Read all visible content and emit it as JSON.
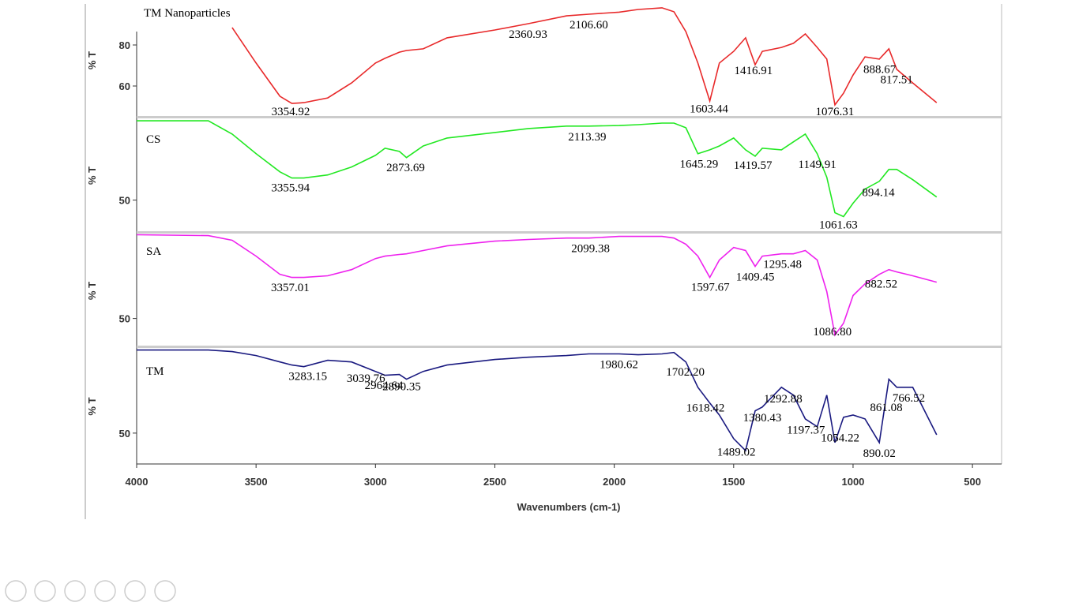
{
  "chart_data": {
    "type": "line",
    "xlabel": "Wavenumbers (cm-1)",
    "x": [
      4000,
      3700,
      3600,
      3500,
      3400,
      3350,
      3300,
      3200,
      3100,
      3000,
      2960,
      2900,
      2870,
      2800,
      2700,
      2500,
      2360,
      2200,
      2106,
      1980,
      1900,
      1800,
      1750,
      1700,
      1650,
      1600,
      1560,
      1500,
      1450,
      1410,
      1380,
      1300,
      1250,
      1200,
      1150,
      1110,
      1076,
      1040,
      1000,
      950,
      890,
      850,
      817,
      750,
      650
    ],
    "xlim": [
      4000,
      378
    ],
    "xticks": [
      4000,
      3500,
      3000,
      2500,
      2000,
      1500,
      1000,
      500
    ],
    "series": [
      {
        "name": "TM Nanoparticles",
        "color": "#e8292a",
        "ylabel": "% T",
        "ylim": [
          45,
          100
        ],
        "yticks": [
          60,
          80
        ],
        "values": [
          null,
          null,
          88.5,
          71.2,
          55,
          51.5,
          51.9,
          54.2,
          61.5,
          71.2,
          73.5,
          76.5,
          77.3,
          78.1,
          83.5,
          87.3,
          90.4,
          94.2,
          95,
          96,
          97.3,
          98.1,
          96.2,
          86.5,
          71.2,
          52.7,
          71.2,
          76.9,
          83.5,
          70.4,
          76.9,
          78.8,
          80.8,
          85.4,
          78.8,
          73.1,
          50.8,
          56.5,
          65.4,
          74.2,
          73.1,
          78.1,
          68.1,
          61.5,
          51.9
        ],
        "annotations": [
          {
            "value": 3354.92,
            "label": "3354.92"
          },
          {
            "value": 2360.93,
            "label": "2360.93"
          },
          {
            "value": 2106.6,
            "label": "2106.60"
          },
          {
            "value": 1603.44,
            "label": "1603.44"
          },
          {
            "value": 1416.91,
            "label": "1416.91"
          },
          {
            "value": 1076.31,
            "label": "1076.31"
          },
          {
            "value": 888.67,
            "label": "888.67"
          },
          {
            "value": 817.51,
            "label": "817.51"
          }
        ]
      },
      {
        "name": "CS",
        "color": "#22e822",
        "ylabel": "% T",
        "ylim": [
          34,
          90
        ],
        "yticks": [
          50
        ],
        "values": [
          88.8,
          88.8,
          82.3,
          72.7,
          63.8,
          60.8,
          60.8,
          62.3,
          66.2,
          71.9,
          75.4,
          73.8,
          70.8,
          76.5,
          80.4,
          83.1,
          85,
          86.2,
          86.2,
          86.5,
          86.9,
          87.7,
          87.7,
          85.4,
          72.7,
          74.6,
          76.5,
          80.4,
          74.6,
          71.5,
          75.4,
          74.6,
          78.5,
          82.3,
          72.7,
          61.2,
          43.8,
          41.9,
          48.5,
          55.4,
          59.2,
          65,
          65,
          60,
          51.5
        ],
        "annotations": [
          {
            "value": 3355.94,
            "label": "3355.94"
          },
          {
            "value": 2873.69,
            "label": "2873.69"
          },
          {
            "value": 2113.39,
            "label": "2113.39"
          },
          {
            "value": 1645.29,
            "label": "1645.29"
          },
          {
            "value": 1419.57,
            "label": "1419.57"
          },
          {
            "value": 1149.91,
            "label": "1149.91"
          },
          {
            "value": 1061.63,
            "label": "1061.63"
          },
          {
            "value": 894.14,
            "label": "894.14"
          }
        ]
      },
      {
        "name": "SA",
        "color": "#ee22ee",
        "ylabel": "% T",
        "ylim": [
          36,
          91
        ],
        "yticks": [
          50
        ],
        "values": [
          90.8,
          90.4,
          88.1,
          80.4,
          71.5,
          70,
          70,
          70.8,
          73.8,
          79.2,
          80.4,
          81.2,
          81.5,
          83.1,
          85.4,
          87.7,
          88.5,
          89.2,
          89.2,
          90,
          90,
          90,
          89.2,
          86.2,
          80.4,
          70,
          78.5,
          84.6,
          83.1,
          75.4,
          80.4,
          81.5,
          81.5,
          83.1,
          78.5,
          63.1,
          41.9,
          47.7,
          61.2,
          66.9,
          71.5,
          73.8,
          72.7,
          70.8,
          67.7
        ],
        "annotations": [
          {
            "value": 3357.01,
            "label": "3357.01"
          },
          {
            "value": 2099.38,
            "label": "2099.38"
          },
          {
            "value": 1597.67,
            "label": "1597.67"
          },
          {
            "value": 1409.45,
            "label": "1409.45"
          },
          {
            "value": 1295.48,
            "label": "1295.48"
          },
          {
            "value": 1086.8,
            "label": "1086.80"
          },
          {
            "value": 882.52,
            "label": "882.52"
          }
        ]
      },
      {
        "name": "TM",
        "color": "#1a1a80",
        "ylabel": "% T",
        "ylim": [
          35,
          91
        ],
        "yticks": [
          50
        ],
        "values": [
          90.4,
          90.4,
          89.6,
          87.7,
          84.6,
          83.1,
          82.3,
          85.4,
          84.6,
          80,
          78.1,
          78.5,
          76.2,
          80,
          83.1,
          85.8,
          86.9,
          87.7,
          88.5,
          88.5,
          88.1,
          88.5,
          89.2,
          84.6,
          72.3,
          64.6,
          58.8,
          47.3,
          41.5,
          60.8,
          62.7,
          72.3,
          68.5,
          56.9,
          53.1,
          68.5,
          45.4,
          57.7,
          58.8,
          56.9,
          45.4,
          76.2,
          72.3,
          72.3,
          49.2
        ],
        "annotations": [
          {
            "value": 3283.15,
            "label": "3283.15"
          },
          {
            "value": 3039.76,
            "label": "3039.76"
          },
          {
            "value": 2964.64,
            "label": "2964.64"
          },
          {
            "value": 2890.35,
            "label": "2890.35"
          },
          {
            "value": 1980.62,
            "label": "1980.62"
          },
          {
            "value": 1702.2,
            "label": "1702.20"
          },
          {
            "value": 1618.42,
            "label": "1618.42"
          },
          {
            "value": 1489.02,
            "label": "1489.02"
          },
          {
            "value": 1380.43,
            "label": "1380.43"
          },
          {
            "value": 1292.88,
            "label": "1292.88"
          },
          {
            "value": 1197.37,
            "label": "1197.37"
          },
          {
            "value": 1054.22,
            "label": "1054.22"
          },
          {
            "value": 890.02,
            "label": "890.02"
          },
          {
            "value": 861.08,
            "label": "861.08"
          },
          {
            "value": 766.52,
            "label": "766.52"
          }
        ]
      }
    ]
  }
}
